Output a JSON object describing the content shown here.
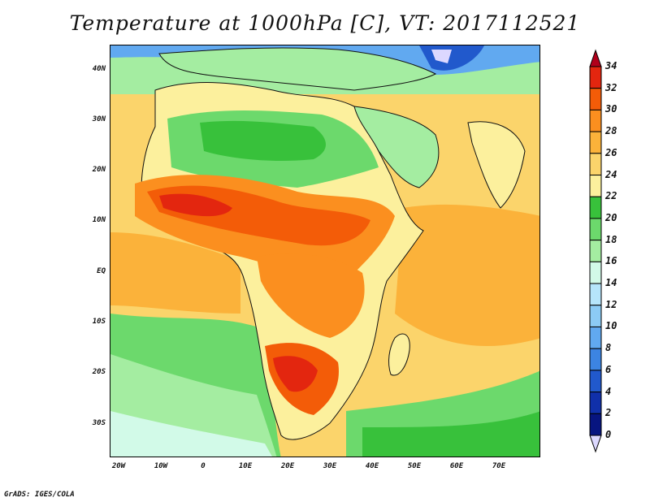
{
  "title": "Temperature at 1000hPa [C], VT: 2017112521",
  "credit": "GrADS: IGES/COLA",
  "map": {
    "variable": "Temperature at 1000hPa",
    "units": "C",
    "lon_range": [
      -22,
      80
    ],
    "lat_range": [
      -37,
      45
    ],
    "lat_ticks": [
      "40N",
      "30N",
      "20N",
      "10N",
      "EQ",
      "10S",
      "20S",
      "30S"
    ],
    "lon_ticks": [
      "20W",
      "10W",
      "0",
      "10E",
      "20E",
      "30E",
      "40E",
      "50E",
      "60E",
      "70E"
    ]
  },
  "colorbar": {
    "levels": [
      "34",
      "32",
      "30",
      "28",
      "26",
      "24",
      "22",
      "20",
      "18",
      "16",
      "14",
      "12",
      "10",
      "8",
      "6",
      "4",
      "2",
      "0"
    ],
    "colors": [
      "#b1001b",
      "#e3260f",
      "#f35c08",
      "#fb8f1f",
      "#fbb23a",
      "#fbd46b",
      "#fcf09d",
      "#38c13b",
      "#6cd96c",
      "#a4eda1",
      "#d2fae8",
      "#b6e5fb",
      "#8ccbf5",
      "#61a9f0",
      "#3c84e2",
      "#2159cc",
      "#1030aa",
      "#071580",
      "#dcd8ff"
    ]
  }
}
